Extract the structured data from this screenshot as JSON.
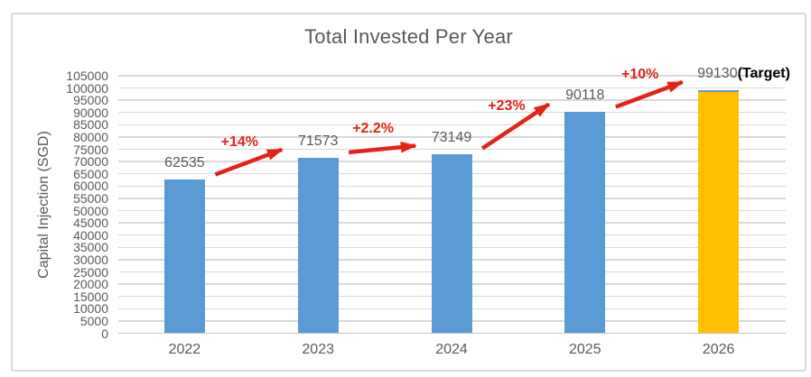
{
  "chart_data": {
    "type": "bar",
    "title": "Total Invested Per Year",
    "xlabel": "",
    "ylabel": "Capital Injection (SGD)",
    "categories": [
      "2022",
      "2023",
      "2024",
      "2025",
      "2026"
    ],
    "values": [
      62535,
      71573,
      73149,
      90118,
      99130
    ],
    "bar_colors": [
      "#5B9BD5",
      "#5B9BD5",
      "#5B9BD5",
      "#5B9BD5",
      "#FFC000"
    ],
    "target_bar_index": 4,
    "target_suffix": "(Target)",
    "ylim": [
      0,
      105000
    ],
    "ytick_step": 5000,
    "grid": true,
    "legend": "none",
    "annotations": [
      {
        "label": "+14%",
        "from": 0,
        "to": 1
      },
      {
        "label": "+2.2%",
        "from": 1,
        "to": 2
      },
      {
        "label": "+23%",
        "from": 2,
        "to": 3
      },
      {
        "label": "+10%",
        "from": 3,
        "to": 4
      }
    ],
    "colors": {
      "bar_blue": "#5B9BD5",
      "bar_target": "#FFC000",
      "arrow_red": "#E2231A",
      "text_gray": "#595959",
      "gridline": "#D9D9D9",
      "target_text": "#000000"
    }
  }
}
